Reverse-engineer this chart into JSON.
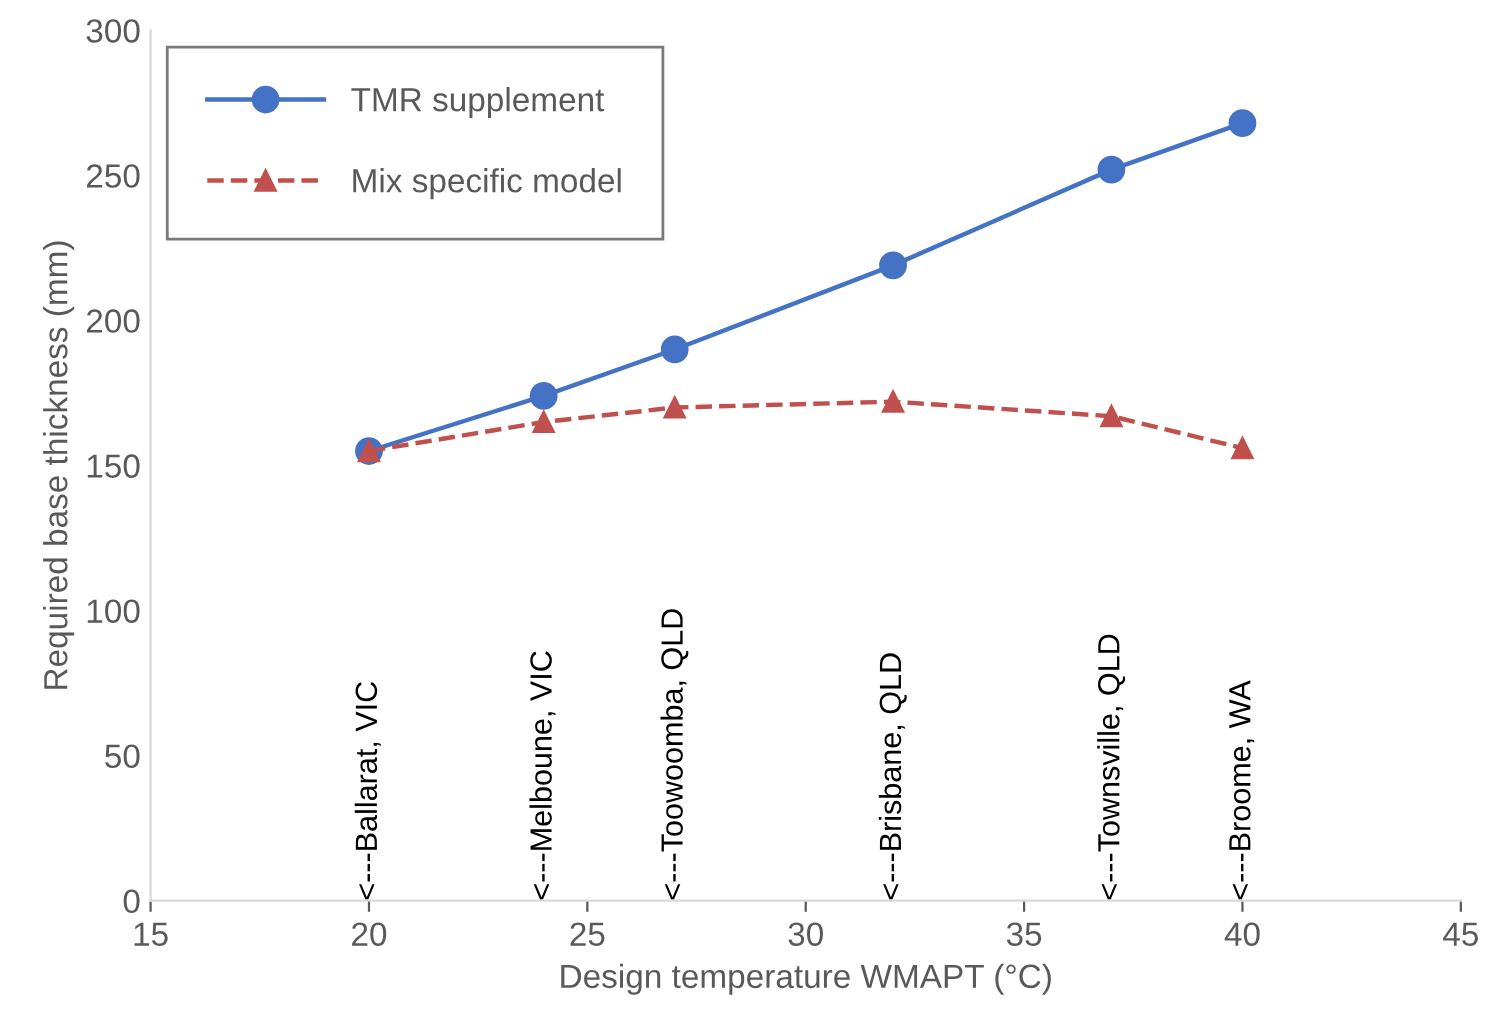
{
  "chart_data": {
    "type": "line",
    "xlabel": "Design temperature WMAPT (°C)",
    "ylabel": "Required base thickness (mm)",
    "x": [
      20,
      24,
      27,
      32,
      37,
      40
    ],
    "series": [
      {
        "name": "TMR supplement",
        "color": "#4472c4",
        "marker": "circle",
        "line_style": "solid",
        "values": [
          155,
          174,
          190,
          219,
          252,
          268
        ]
      },
      {
        "name": "Mix specific model",
        "color": "#c0504d",
        "marker": "triangle",
        "line_style": "dashed",
        "values": [
          155,
          165,
          170,
          172,
          167,
          156
        ]
      }
    ],
    "xlim": [
      15,
      45
    ],
    "xticks": [
      15,
      20,
      25,
      30,
      35,
      40,
      45
    ],
    "ylim": [
      0,
      300
    ],
    "yticks": [
      0,
      50,
      100,
      150,
      200,
      250,
      300
    ],
    "annotations": [
      "<---Ballarat, VIC",
      "<---Melboune, VIC",
      "<---Toowoomba, QLD",
      "<---Brisbane, QLD",
      "<---Townsville, QLD",
      "<---Broome, WA"
    ],
    "grid": false,
    "legend": "top left"
  }
}
